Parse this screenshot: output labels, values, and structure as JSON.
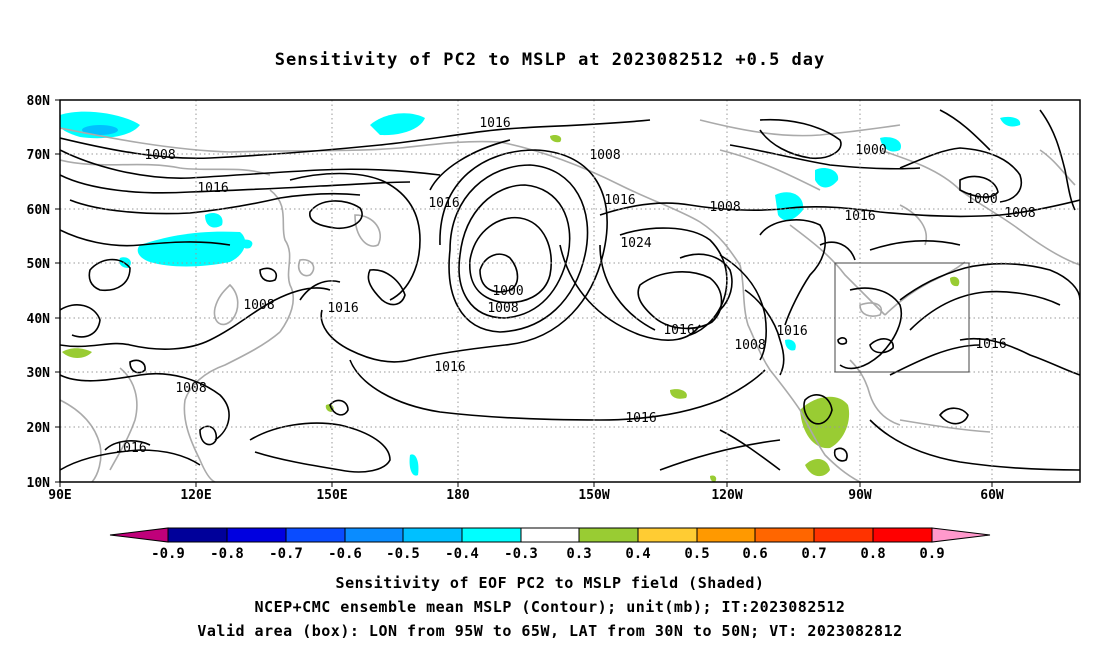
{
  "title": "Sensitivity of PC2 to MSLP at 2023082512 +0.5 day",
  "lat_labels": [
    "80N",
    "70N",
    "60N",
    "50N",
    "40N",
    "30N",
    "20N",
    "10N"
  ],
  "lon_labels": [
    "90E",
    "120E",
    "150E",
    "180",
    "150W",
    "120W",
    "90W",
    "60W"
  ],
  "contour_labels": [
    "1016",
    "1008",
    "1016",
    "1016",
    "1008",
    "1016",
    "1024",
    "1000",
    "1008",
    "1016",
    "1016",
    "1016",
    "1000",
    "1000",
    "1008",
    "1008",
    "1008",
    "1016",
    "1016",
    "1008",
    "1016",
    "1008",
    "1016",
    "1016",
    "1016"
  ],
  "colorbar": {
    "labels": [
      "-0.9",
      "-0.8",
      "-0.7",
      "-0.6",
      "-0.5",
      "-0.4",
      "-0.3",
      "0.3",
      "0.4",
      "0.5",
      "0.6",
      "0.7",
      "0.8",
      "0.9"
    ],
    "colors": [
      "#c0007a",
      "#00009a",
      "#0000e0",
      "#0a4cff",
      "#0a8cff",
      "#00c0ff",
      "#00ffff",
      "#ffffff",
      "#99cc33",
      "#ffcc33",
      "#ff9900",
      "#ff6600",
      "#ff3300",
      "#ff0000",
      "#ff99cc"
    ]
  },
  "valid_box": {
    "lon_min": "95W",
    "lon_max": "65W",
    "lat_min": "30N",
    "lat_max": "50N"
  },
  "footer": {
    "line1": "Sensitivity of EOF PC2 to MSLP field (Shaded)",
    "line2": "NCEP+CMC ensemble mean MSLP (Contour); unit(mb); IT:2023082512",
    "line3": "Valid area (box): LON from 95W to 65W, LAT from 30N to 50N; VT: 2023082812"
  }
}
